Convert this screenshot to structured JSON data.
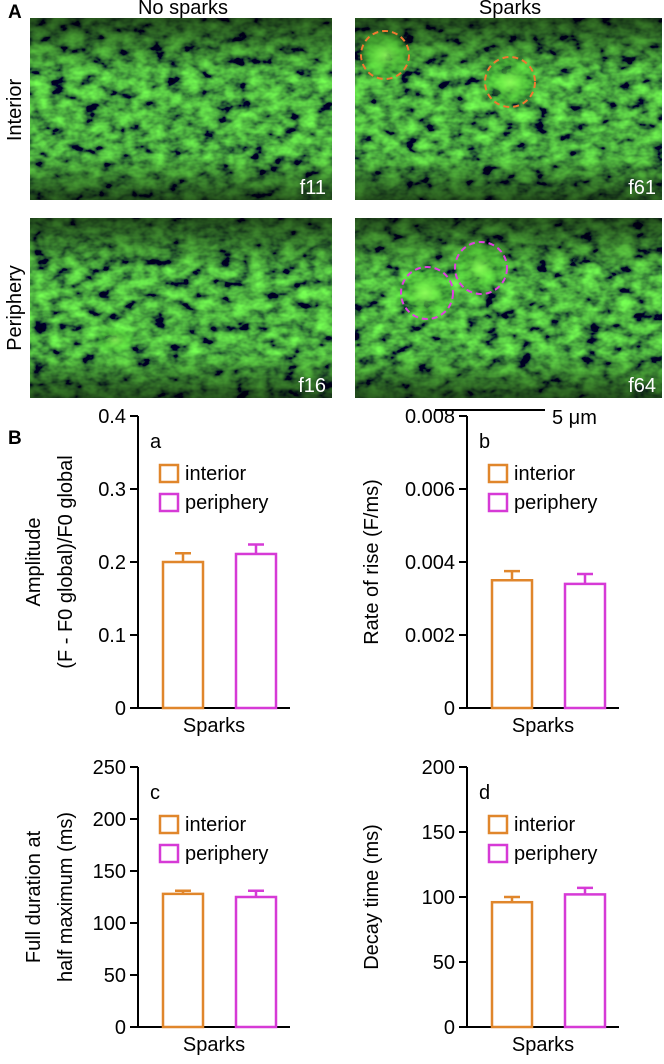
{
  "panel_labels": [
    "A",
    "B"
  ],
  "images": {
    "columns": [
      "No sparks",
      "Sparks"
    ],
    "rows": [
      "Interior",
      "Periphery"
    ],
    "frames": [
      "f11",
      "f61",
      "f16",
      "f64"
    ],
    "scale_bar": "5 μm"
  },
  "chart_data": [
    {
      "type": "bar",
      "label": "a",
      "ylabel": [
        "Amplitude",
        "(F - F0 global)/F0 global"
      ],
      "categories": [
        "Sparks"
      ],
      "series": [
        {
          "name": "interior",
          "color": "#e0862b",
          "values": [
            0.2
          ],
          "errors": [
            0.012
          ]
        },
        {
          "name": "periphery",
          "color": "#d63ad6",
          "values": [
            0.211
          ],
          "errors": [
            0.013
          ]
        }
      ],
      "ylim": [
        0,
        0.4
      ],
      "yticks": [
        0,
        0.1,
        0.2,
        0.3,
        0.4
      ]
    },
    {
      "type": "bar",
      "label": "b",
      "ylabel": [
        "Rate of rise (F/ms)"
      ],
      "categories": [
        "Sparks"
      ],
      "series": [
        {
          "name": "interior",
          "color": "#e0862b",
          "values": [
            0.0035
          ],
          "errors": [
            0.00025
          ]
        },
        {
          "name": "periphery",
          "color": "#d63ad6",
          "values": [
            0.0034
          ],
          "errors": [
            0.00027
          ]
        }
      ],
      "ylim": [
        0,
        0.008
      ],
      "yticks": [
        0,
        0.002,
        0.004,
        0.006,
        0.008
      ]
    },
    {
      "type": "bar",
      "label": "c",
      "ylabel": [
        "Full duration at",
        "half maximum (ms)"
      ],
      "categories": [
        "Sparks"
      ],
      "series": [
        {
          "name": "interior",
          "color": "#e0862b",
          "values": [
            128
          ],
          "errors": [
            3
          ]
        },
        {
          "name": "periphery",
          "color": "#d63ad6",
          "values": [
            125
          ],
          "errors": [
            6
          ]
        }
      ],
      "ylim": [
        0,
        250
      ],
      "yticks": [
        0,
        50,
        100,
        150,
        200,
        250
      ]
    },
    {
      "type": "bar",
      "label": "d",
      "ylabel": [
        "Decay time (ms)"
      ],
      "categories": [
        "Sparks"
      ],
      "series": [
        {
          "name": "interior",
          "color": "#e0862b",
          "values": [
            96
          ],
          "errors": [
            4
          ]
        },
        {
          "name": "periphery",
          "color": "#d63ad6",
          "values": [
            102
          ],
          "errors": [
            5
          ]
        }
      ],
      "ylim": [
        0,
        200
      ],
      "yticks": [
        0,
        50,
        100,
        150,
        200
      ]
    }
  ]
}
